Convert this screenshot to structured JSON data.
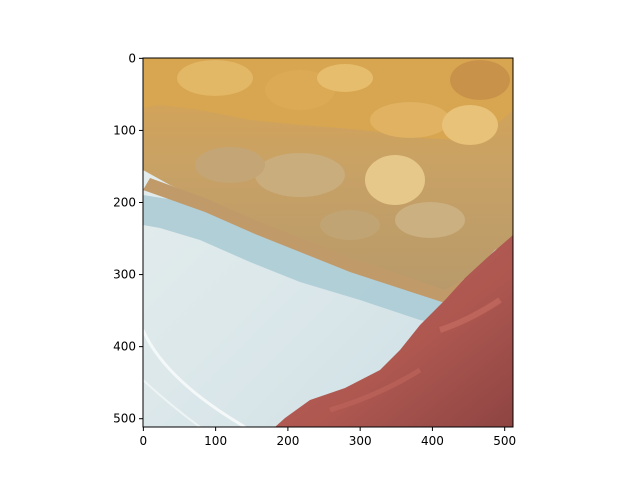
{
  "figure": {
    "image_subject": "photo of a slice of apple pie on a white plate next to a red napkin",
    "colors": {
      "plate": "#dde8ea",
      "plate_shadow": "#a7c9d3",
      "pie_filling": "#c99a4e",
      "pie_top": "#d6a653",
      "crust": "#c99a62",
      "napkin": "#b45a52",
      "dark_background": "#2c2a12",
      "axes": "#000000",
      "figure_background": "#ffffff"
    }
  },
  "chart_data": {
    "type": "image",
    "x_ticks": [
      "0",
      "100",
      "200",
      "300",
      "400",
      "500"
    ],
    "y_ticks": [
      "0",
      "100",
      "200",
      "300",
      "400",
      "500"
    ],
    "xlim": [
      0,
      511
    ],
    "ylim": [
      511,
      0
    ],
    "grid": false
  }
}
